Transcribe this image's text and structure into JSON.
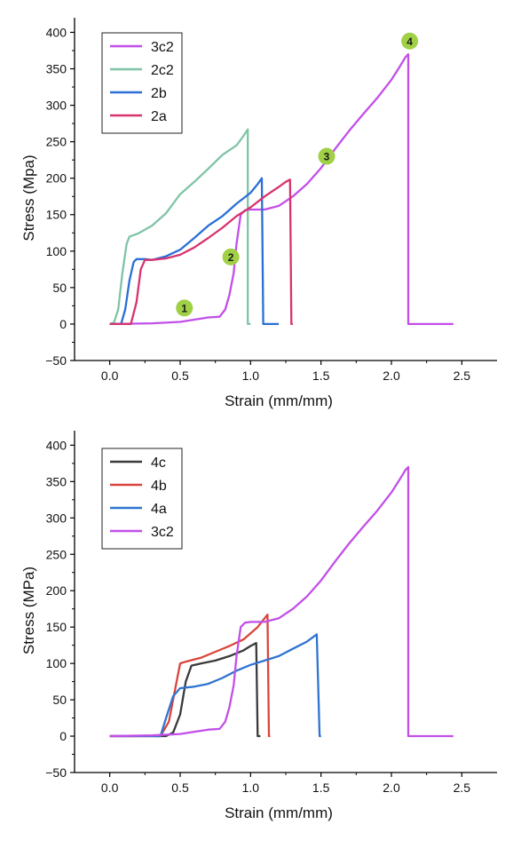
{
  "colors": {
    "3c2": "#c24fe8",
    "2c2": "#7fc4a6",
    "2b": "#2a6fd6",
    "2a": "#d6336f",
    "4c": "#3a3a3a",
    "4b": "#d9453c",
    "4a": "#2f74d0",
    "marker": "#9fd045",
    "axis": "#000000"
  },
  "chart_data": [
    {
      "type": "line",
      "xlabel": "Strain (mm/mm)",
      "ylabel": "Stress (Mpa)",
      "xlim": [
        -0.25,
        2.75
      ],
      "ylim": [
        -50,
        420
      ],
      "xticks": [
        0.0,
        0.5,
        1.0,
        1.5,
        2.0,
        2.5
      ],
      "xtick_labels": [
        "0.0",
        "0.5",
        "1.0",
        "1.5",
        "2.0",
        "2.5"
      ],
      "yticks": [
        -50,
        0,
        50,
        100,
        150,
        200,
        250,
        300,
        350,
        400
      ],
      "ytick_labels": [
        "−50",
        "0",
        "50",
        "100",
        "150",
        "200",
        "250",
        "300",
        "350",
        "400"
      ],
      "legend_position": "top-left",
      "series": [
        {
          "name": "3c2",
          "color": "#c24fe8",
          "x": [
            0.0,
            0.3,
            0.5,
            0.6,
            0.7,
            0.78,
            0.82,
            0.85,
            0.88,
            0.9,
            0.93,
            0.96,
            1.0,
            1.1,
            1.2,
            1.3,
            1.4,
            1.5,
            1.6,
            1.7,
            1.8,
            1.9,
            2.0,
            2.05,
            2.1,
            2.12,
            2.12,
            2.2,
            2.44
          ],
          "y": [
            0,
            1,
            3,
            6,
            9,
            10,
            20,
            40,
            70,
            110,
            150,
            156,
            157,
            157,
            162,
            175,
            192,
            214,
            240,
            265,
            288,
            310,
            335,
            350,
            366,
            370,
            0,
            0,
            0
          ]
        },
        {
          "name": "2c2",
          "color": "#7fc4a6",
          "x": [
            0.0,
            0.03,
            0.06,
            0.09,
            0.12,
            0.14,
            0.2,
            0.3,
            0.4,
            0.5,
            0.6,
            0.7,
            0.8,
            0.9,
            0.95,
            0.98,
            0.98,
            1.0
          ],
          "y": [
            0,
            2,
            20,
            70,
            110,
            120,
            124,
            135,
            152,
            178,
            195,
            213,
            232,
            245,
            258,
            267,
            0,
            0
          ]
        },
        {
          "name": "2b",
          "color": "#2a6fd6",
          "x": [
            0.0,
            0.08,
            0.11,
            0.14,
            0.17,
            0.19,
            0.25,
            0.3,
            0.4,
            0.5,
            0.6,
            0.7,
            0.8,
            0.9,
            1.0,
            1.05,
            1.08,
            1.09,
            1.1,
            1.2
          ],
          "y": [
            0,
            0,
            20,
            60,
            85,
            89,
            89,
            88,
            93,
            102,
            118,
            135,
            148,
            165,
            180,
            192,
            200,
            0,
            0,
            0
          ]
        },
        {
          "name": "2a",
          "color": "#d6336f",
          "x": [
            0.0,
            0.15,
            0.19,
            0.22,
            0.25,
            0.3,
            0.4,
            0.5,
            0.6,
            0.7,
            0.8,
            0.9,
            1.0,
            1.1,
            1.2,
            1.25,
            1.28,
            1.29,
            1.3
          ],
          "y": [
            0,
            0,
            30,
            75,
            88,
            88,
            90,
            95,
            105,
            118,
            132,
            148,
            160,
            175,
            188,
            195,
            198,
            0,
            0
          ]
        }
      ],
      "markers": [
        {
          "label": "1",
          "x": 0.53,
          "y": 22
        },
        {
          "label": "2",
          "x": 0.86,
          "y": 92
        },
        {
          "label": "3",
          "x": 1.54,
          "y": 230
        },
        {
          "label": "4",
          "x": 2.13,
          "y": 388
        }
      ]
    },
    {
      "type": "line",
      "xlabel": "Strain (mm/mm)",
      "ylabel": "Stress (MPa)",
      "xlim": [
        -0.25,
        2.75
      ],
      "ylim": [
        -50,
        420
      ],
      "xticks": [
        0.0,
        0.5,
        1.0,
        1.5,
        2.0,
        2.5
      ],
      "xtick_labels": [
        "0.0",
        "0.5",
        "1.0",
        "1.5",
        "2.0",
        "2.5"
      ],
      "yticks": [
        -50,
        0,
        50,
        100,
        150,
        200,
        250,
        300,
        350,
        400
      ],
      "ytick_labels": [
        "−50",
        "0",
        "50",
        "100",
        "150",
        "200",
        "250",
        "300",
        "350",
        "400"
      ],
      "legend_position": "top-left",
      "series": [
        {
          "name": "4c",
          "color": "#3a3a3a",
          "x": [
            0.0,
            0.4,
            0.45,
            0.5,
            0.54,
            0.58,
            0.65,
            0.75,
            0.85,
            0.95,
            1.0,
            1.04,
            1.05,
            1.07
          ],
          "y": [
            0,
            0,
            5,
            30,
            75,
            97,
            100,
            104,
            110,
            118,
            124,
            128,
            0,
            0
          ]
        },
        {
          "name": "4b",
          "color": "#d9453c",
          "x": [
            0.0,
            0.36,
            0.42,
            0.47,
            0.5,
            0.55,
            0.65,
            0.75,
            0.85,
            0.95,
            1.05,
            1.12,
            1.13,
            1.14
          ],
          "y": [
            0,
            0,
            20,
            70,
            100,
            103,
            108,
            116,
            124,
            133,
            150,
            167,
            0,
            0
          ]
        },
        {
          "name": "4a",
          "color": "#2f74d0",
          "x": [
            0.0,
            0.36,
            0.4,
            0.45,
            0.5,
            0.6,
            0.7,
            0.8,
            0.9,
            1.0,
            1.1,
            1.2,
            1.3,
            1.4,
            1.47,
            1.49,
            1.5
          ],
          "y": [
            0,
            0,
            25,
            55,
            66,
            68,
            72,
            80,
            90,
            98,
            104,
            110,
            120,
            130,
            140,
            0,
            0
          ]
        },
        {
          "name": "3c2",
          "color": "#c24fe8",
          "x": [
            0.0,
            0.3,
            0.5,
            0.6,
            0.7,
            0.78,
            0.82,
            0.85,
            0.88,
            0.9,
            0.93,
            0.96,
            1.0,
            1.1,
            1.2,
            1.3,
            1.4,
            1.5,
            1.6,
            1.7,
            1.8,
            1.9,
            2.0,
            2.05,
            2.1,
            2.12,
            2.12,
            2.2,
            2.44
          ],
          "y": [
            0,
            1,
            3,
            6,
            9,
            10,
            20,
            40,
            70,
            110,
            150,
            156,
            157,
            157,
            162,
            175,
            192,
            214,
            240,
            265,
            288,
            310,
            335,
            350,
            366,
            370,
            0,
            0,
            0
          ]
        }
      ]
    }
  ]
}
